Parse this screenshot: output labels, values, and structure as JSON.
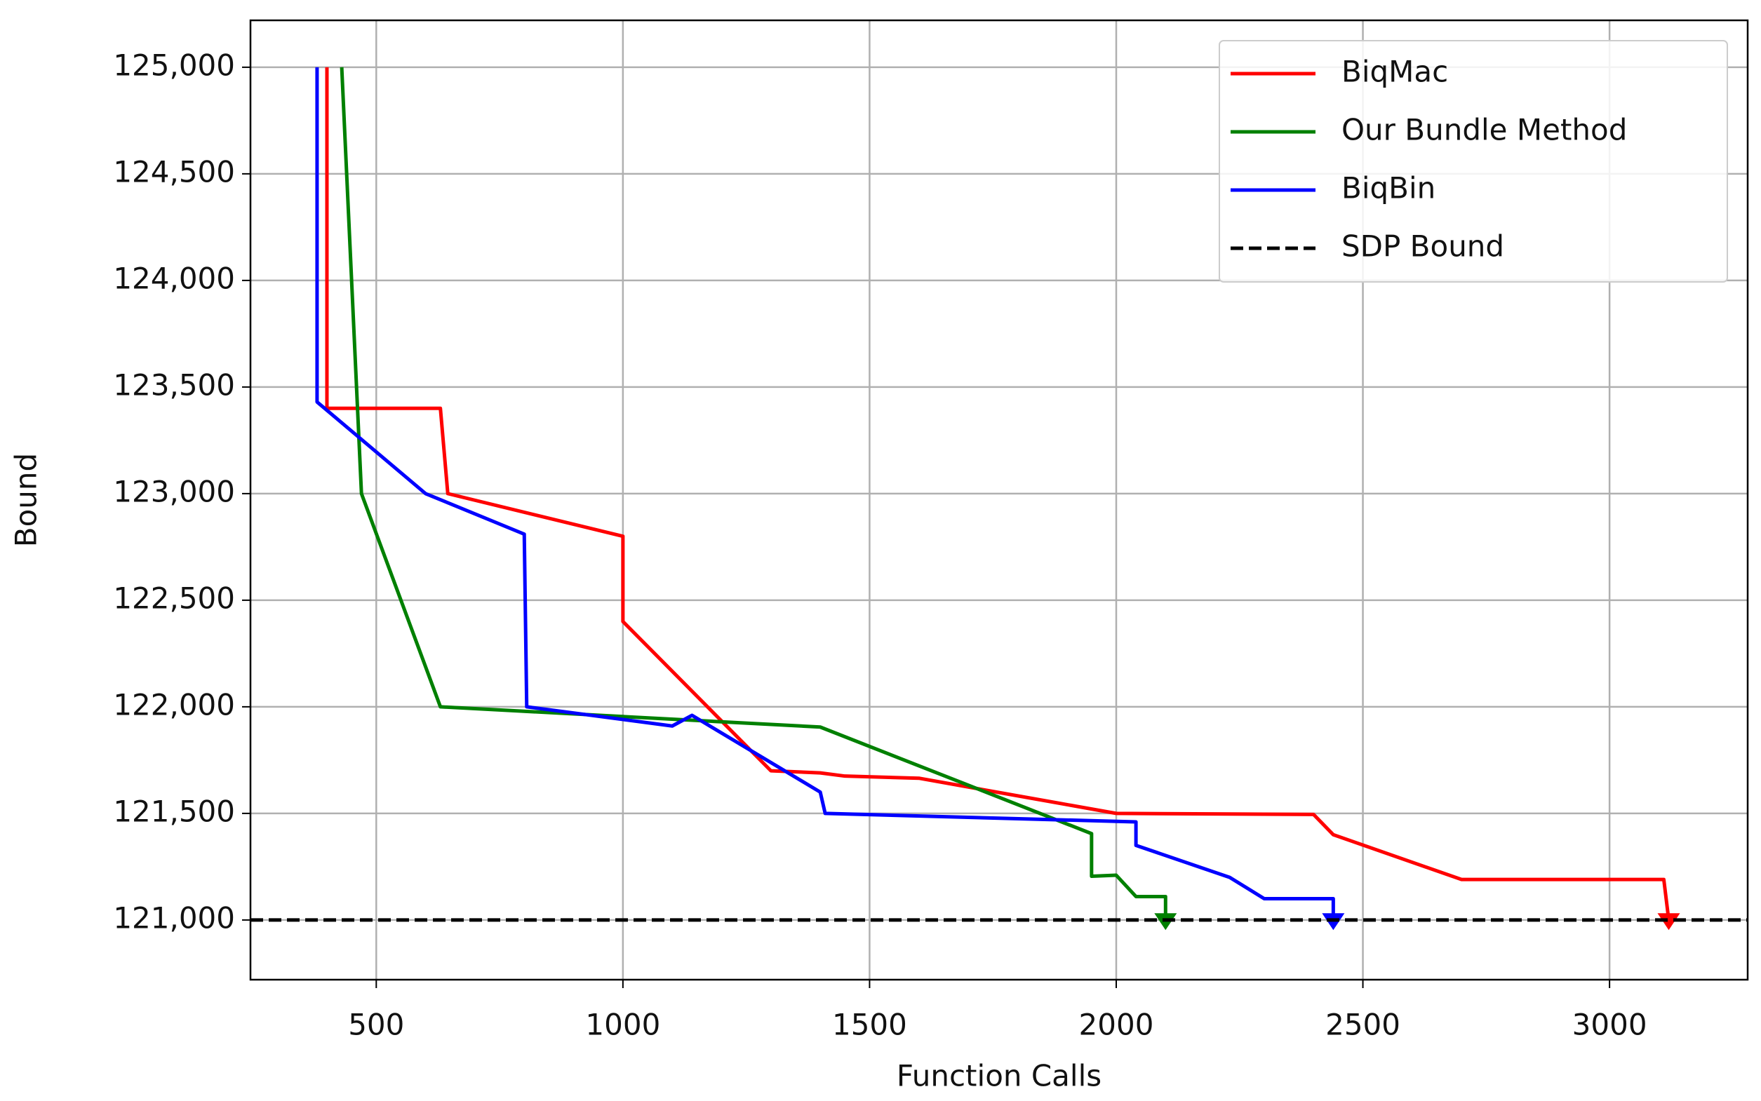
{
  "chart_data": {
    "type": "line",
    "x_label": "Function Calls",
    "y_label": "Bound",
    "xlim": [
      245,
      3280
    ],
    "ylim": [
      120720,
      125220
    ],
    "xticks": [
      500,
      1000,
      1500,
      2000,
      2500,
      3000
    ],
    "yticks": [
      {
        "value": 121000,
        "label": "121,000"
      },
      {
        "value": 121500,
        "label": "121,500"
      },
      {
        "value": 122000,
        "label": "122,000"
      },
      {
        "value": 122500,
        "label": "122,500"
      },
      {
        "value": 123000,
        "label": "123,000"
      },
      {
        "value": 123500,
        "label": "123,500"
      },
      {
        "value": 124000,
        "label": "124,000"
      },
      {
        "value": 124500,
        "label": "124,500"
      },
      {
        "value": 125000,
        "label": "125,000"
      }
    ],
    "grid": true,
    "legend": "upper right",
    "end_marker": "triangle-down",
    "series": [
      {
        "name": "BiqMac",
        "color": "#ff0000",
        "x": [
          400,
          400,
          630,
          645,
          1000,
          1000,
          1300,
          1400,
          1450,
          1600,
          2000,
          2400,
          2440,
          2700,
          3110,
          3120
        ],
        "values": [
          125000,
          123400,
          123400,
          123000,
          122800,
          122400,
          121700,
          121690,
          121675,
          121665,
          121500,
          121495,
          121400,
          121190,
          121190,
          121000
        ]
      },
      {
        "name": "Our Bundle Method",
        "color": "#008000",
        "x": [
          430,
          470,
          630,
          1400,
          1950,
          1950,
          2000,
          2040,
          2100,
          2100
        ],
        "values": [
          125000,
          123000,
          122000,
          121905,
          121405,
          121205,
          121210,
          121110,
          121110,
          121000
        ]
      },
      {
        "name": "BiqBin",
        "color": "#0000ff",
        "x": [
          380,
          380,
          600,
          800,
          805,
          1100,
          1140,
          1400,
          1410,
          2040,
          2040,
          2230,
          2300,
          2440,
          2440
        ],
        "values": [
          125000,
          123430,
          123000,
          122810,
          122000,
          121910,
          121960,
          121600,
          121500,
          121460,
          121350,
          121200,
          121100,
          121100,
          121000
        ]
      }
    ],
    "reference_lines": [
      {
        "name": "SDP Bound",
        "value": 121000,
        "color": "#000000",
        "dashed": true
      }
    ]
  }
}
